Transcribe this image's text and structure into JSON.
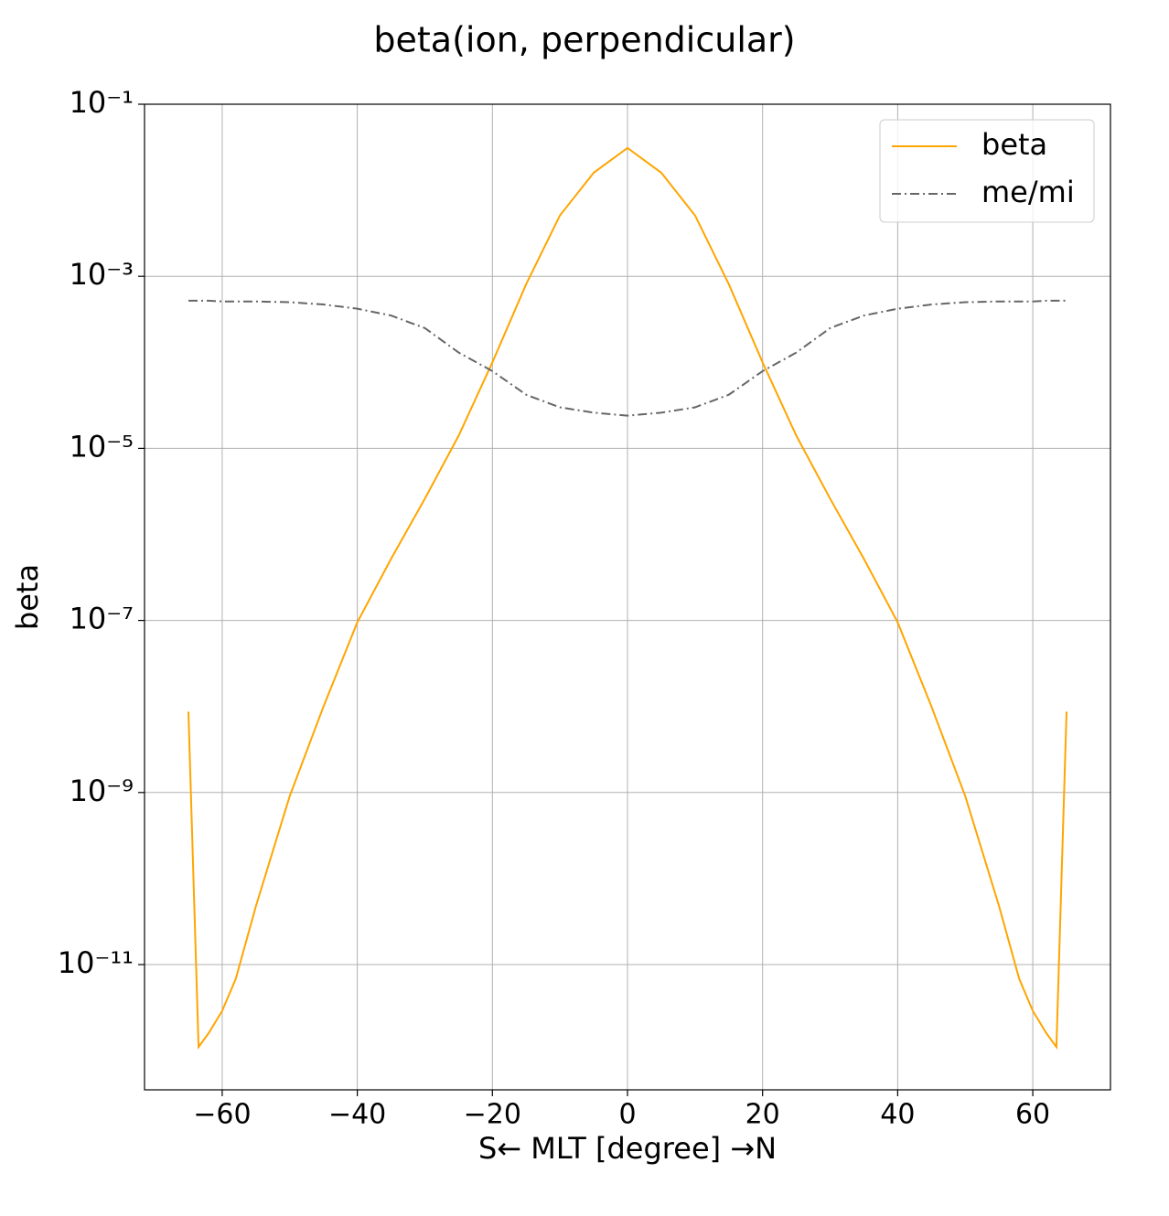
{
  "chart_data": {
    "type": "line",
    "title": "beta(ion, perpendicular)",
    "xlabel": "S← MLT [degree] →N",
    "ylabel": "beta",
    "yscale": "log",
    "grid": true,
    "legend": "upper right",
    "x": [
      -65,
      -63.5,
      -62,
      -60,
      -58,
      -55,
      -50,
      -45,
      -40,
      -35,
      -30,
      -25,
      -20,
      -15,
      -10,
      -5,
      0,
      5,
      10,
      15,
      20,
      25,
      30,
      35,
      40,
      45,
      50,
      55,
      58,
      60,
      62,
      63.5,
      65
    ],
    "series": [
      {
        "name": "beta",
        "color": "#ffa500",
        "dash": "solid",
        "values": [
          8.7e-09,
          1.1e-12,
          1.6e-12,
          2.9e-12,
          6.8e-12,
          4.8e-11,
          9.1e-10,
          1e-08,
          9.5e-08,
          5.2e-07,
          2.6e-06,
          1.4e-05,
          0.0001,
          0.00081,
          0.0051,
          0.016,
          0.031,
          0.016,
          0.0051,
          0.00081,
          0.0001,
          1.4e-05,
          2.6e-06,
          5.2e-07,
          9.5e-08,
          1e-08,
          9.1e-10,
          4.8e-11,
          6.8e-12,
          2.9e-12,
          1.6e-12,
          1.1e-12,
          8.7e-09
        ]
      },
      {
        "name": "me/mi",
        "color": "#666666",
        "dash": "dashdot",
        "values": [
          0.00052,
          0.00052,
          0.00052,
          0.00051,
          0.00051,
          0.00051,
          0.0005,
          0.00047,
          0.00042,
          0.00035,
          0.00025,
          0.00013,
          7.9e-05,
          4.2e-05,
          3e-05,
          2.6e-05,
          2.4e-05,
          2.6e-05,
          3e-05,
          4.2e-05,
          7.9e-05,
          0.00013,
          0.00025,
          0.00035,
          0.00042,
          0.00047,
          0.0005,
          0.00051,
          0.00051,
          0.00051,
          0.00052,
          0.00052,
          0.00052
        ]
      }
    ],
    "xlim": [
      -71.5,
      71.5
    ],
    "xticks": [
      {
        "value": -60,
        "label": "−60"
      },
      {
        "value": -40,
        "label": "−40"
      },
      {
        "value": -20,
        "label": "−20"
      },
      0,
      20,
      40,
      60
    ],
    "ylim": [
      3.5e-13,
      0.1
    ],
    "yticks": [
      {
        "value": 0.1,
        "label": "10⁻¹"
      },
      {
        "value": 0.001,
        "label": "10⁻³"
      },
      {
        "value": 1e-05,
        "label": "10⁻⁵"
      },
      {
        "value": 1e-07,
        "label": "10⁻⁷"
      },
      {
        "value": 1e-09,
        "label": "10⁻⁹"
      },
      {
        "value": 1e-11,
        "label": "10⁻¹¹"
      }
    ]
  }
}
